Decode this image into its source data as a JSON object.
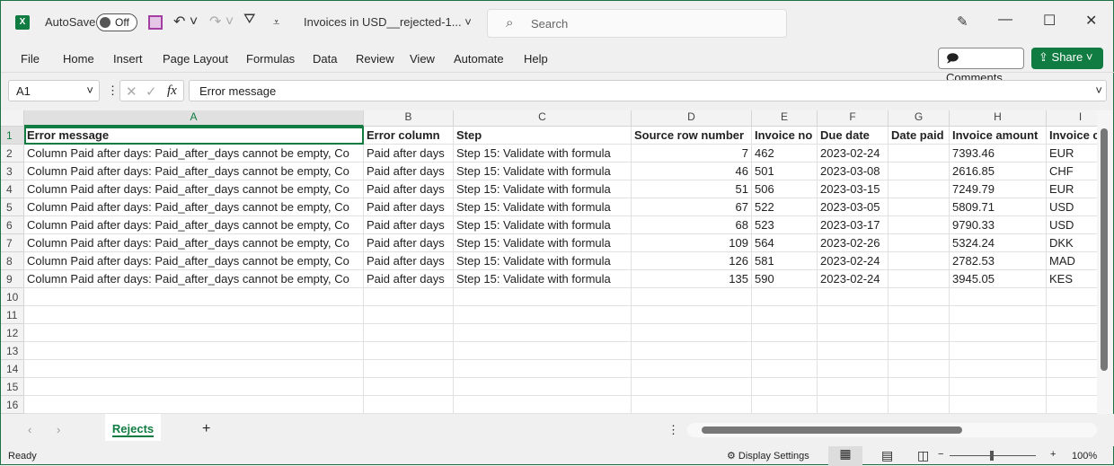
{
  "titlebar": {
    "autosave": "AutoSave",
    "autosave_state": "Off",
    "filename": "Invoices in USD__rejected-1...",
    "search_placeholder": "Search"
  },
  "menu": [
    "File",
    "Home",
    "Insert",
    "Page Layout",
    "Formulas",
    "Data",
    "Review",
    "View",
    "Automate",
    "Help"
  ],
  "buttons": {
    "comments": "Comments",
    "share": "Share"
  },
  "formula_bar": {
    "name_box": "A1",
    "formula": "Error message"
  },
  "columns": [
    "A",
    "B",
    "C",
    "D",
    "E",
    "F",
    "G",
    "H",
    "I"
  ],
  "header_row": [
    "Error message",
    "Error column",
    "Step",
    "Source row number",
    "Invoice no",
    "Due date",
    "Date paid",
    "Invoice amount",
    "Invoice c"
  ],
  "rows": [
    [
      "Column Paid after days: Paid_after_days cannot be empty, Co",
      "Paid after days",
      "Step 15: Validate with formula",
      "7",
      "462",
      "2023-02-24",
      "",
      "7393.46",
      "EUR"
    ],
    [
      "Column Paid after days: Paid_after_days cannot be empty, Co",
      "Paid after days",
      "Step 15: Validate with formula",
      "46",
      "501",
      "2023-03-08",
      "",
      "2616.85",
      "CHF"
    ],
    [
      "Column Paid after days: Paid_after_days cannot be empty, Co",
      "Paid after days",
      "Step 15: Validate with formula",
      "51",
      "506",
      "2023-03-15",
      "",
      "7249.79",
      "EUR"
    ],
    [
      "Column Paid after days: Paid_after_days cannot be empty, Co",
      "Paid after days",
      "Step 15: Validate with formula",
      "67",
      "522",
      "2023-03-05",
      "",
      "5809.71",
      "USD"
    ],
    [
      "Column Paid after days: Paid_after_days cannot be empty, Co",
      "Paid after days",
      "Step 15: Validate with formula",
      "68",
      "523",
      "2023-03-17",
      "",
      "9790.33",
      "USD"
    ],
    [
      "Column Paid after days: Paid_after_days cannot be empty, Co",
      "Paid after days",
      "Step 15: Validate with formula",
      "109",
      "564",
      "2023-02-26",
      "",
      "5324.24",
      "DKK"
    ],
    [
      "Column Paid after days: Paid_after_days cannot be empty, Co",
      "Paid after days",
      "Step 15: Validate with formula",
      "126",
      "581",
      "2023-02-24",
      "",
      "2782.53",
      "MAD"
    ],
    [
      "Column Paid after days: Paid_after_days cannot be empty, Co",
      "Paid after days",
      "Step 15: Validate with formula",
      "135",
      "590",
      "2023-02-24",
      "",
      "3945.05",
      "KES"
    ]
  ],
  "row_numbers": [
    "1",
    "2",
    "3",
    "4",
    "5",
    "6",
    "7",
    "8",
    "9",
    "10",
    "11",
    "12",
    "13",
    "14",
    "15",
    "16"
  ],
  "sheet_tab": "Rejects",
  "status": {
    "ready": "Ready",
    "display_settings": "Display Settings",
    "zoom": "100%",
    "zoom_level_percent": 100
  },
  "colors": {
    "brand": "#107c41",
    "save_icon": "#a33fa3"
  }
}
